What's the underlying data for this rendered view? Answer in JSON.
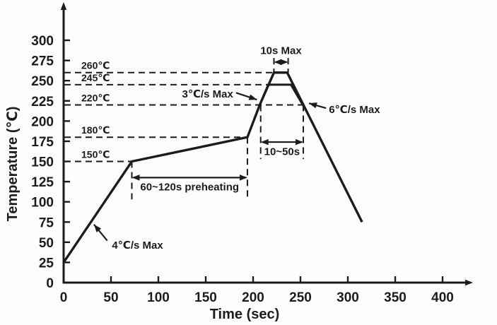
{
  "artifact": "¨",
  "chart_data": {
    "type": "line",
    "title": "",
    "xlabel": "Time (sec)",
    "ylabel": "Temperature (℃)",
    "x_ticks": [
      0,
      50,
      100,
      150,
      200,
      250,
      300,
      350,
      400
    ],
    "y_ticks": [
      0,
      25,
      50,
      75,
      100,
      125,
      150,
      175,
      200,
      225,
      250,
      275,
      300
    ],
    "xlim": [
      0,
      430
    ],
    "ylim": [
      0,
      340
    ],
    "grid": false,
    "legend": "none",
    "series": [
      {
        "name": "reflow-profile-peak-260",
        "points": [
          [
            0,
            25
          ],
          [
            72,
            150
          ],
          [
            194,
            180
          ],
          [
            207,
            220
          ],
          [
            222,
            260
          ],
          [
            236,
            260
          ],
          [
            315,
            75
          ]
        ]
      },
      {
        "name": "reflow-profile-peak-245",
        "points": [
          [
            207,
            220
          ],
          [
            216,
            245
          ],
          [
            240,
            245
          ],
          [
            256,
            213
          ]
        ]
      }
    ],
    "reference_levels": [
      {
        "label": "260℃",
        "temp": 260,
        "t_end": 222
      },
      {
        "label": "245℃",
        "temp": 245,
        "t_end": 216
      },
      {
        "label": "220℃",
        "temp": 220,
        "t_end": 256
      },
      {
        "label": "180℃",
        "temp": 180,
        "t_end": 194
      },
      {
        "label": "150℃",
        "temp": 150,
        "t_end": 72
      }
    ],
    "annotations": [
      {
        "id": "peak-dwell",
        "type": "span",
        "label": "10s Max",
        "t1": 222,
        "t2": 237,
        "arrow_T": 273,
        "label_T": 283,
        "guides": [
          [
            222,
            278,
            260
          ],
          [
            237,
            278,
            260
          ]
        ]
      },
      {
        "id": "preheat-window",
        "type": "span",
        "label": "60~120s preheating",
        "t1": 72,
        "t2": 194,
        "arrow_T": 130,
        "label_T": 114,
        "guides": [
          [
            72,
            150,
            103
          ],
          [
            194,
            180,
            103
          ]
        ]
      },
      {
        "id": "time-above-220",
        "type": "span",
        "label": "10~50s",
        "t1": 208,
        "t2": 253,
        "arrow_T": 174,
        "label_T": 158,
        "guides": [
          [
            208,
            220,
            153
          ],
          [
            253,
            220,
            153
          ]
        ]
      },
      {
        "id": "ramp-up-rate",
        "type": "pointer",
        "label": "3℃/s Max",
        "anchor": "end",
        "text_t": 179,
        "text_T": 229,
        "tail_t": 182,
        "tail_T": 235,
        "tip_t": 204,
        "tip_T": 226.5
      },
      {
        "id": "cooling-rate",
        "type": "pointer",
        "label": "6℃/s Max",
        "anchor": "start",
        "text_t": 280,
        "text_T": 210,
        "tail_t": 277,
        "tail_T": 216,
        "tip_t": 259,
        "tip_T": 222
      },
      {
        "id": "preheat-ramp-rate",
        "type": "pointer",
        "label": "4℃/s Max",
        "anchor": "start",
        "text_t": 51,
        "text_T": 42,
        "tail_t": 46,
        "tail_T": 52,
        "tip_t": 32,
        "tip_T": 72
      }
    ]
  }
}
